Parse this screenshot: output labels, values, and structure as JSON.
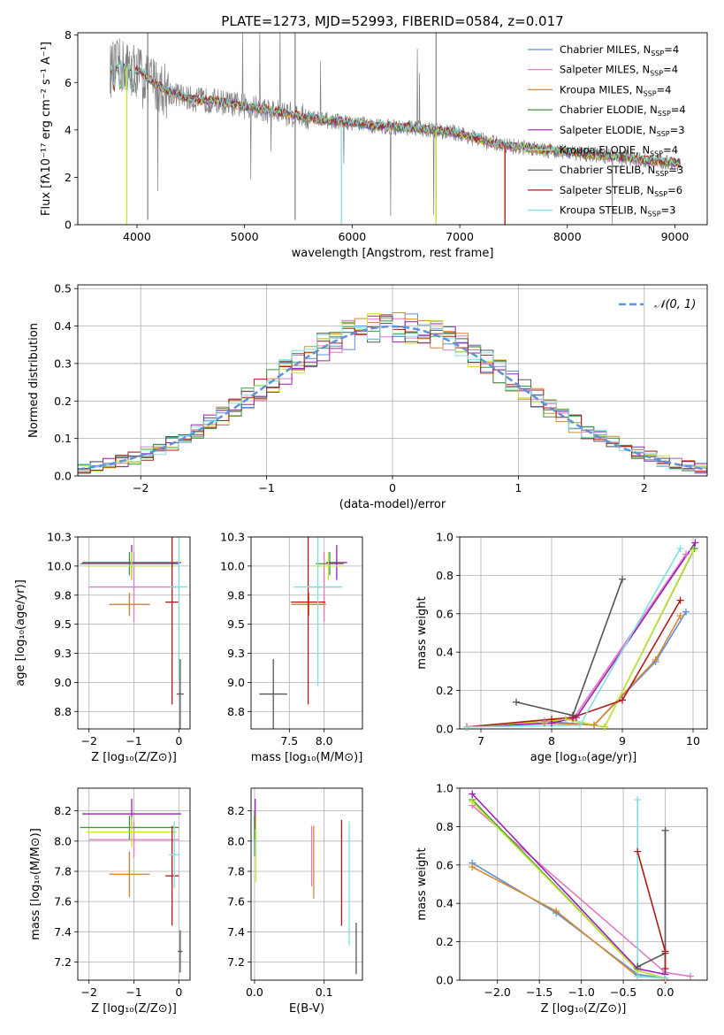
{
  "title": "PLATE=1273, MJD=52993, FIBERID=0584, z=0.017",
  "colors": {
    "chabrier_miles": "#5b8fd9",
    "salpeter_miles": "#e377c2",
    "kroupa_miles": "#d98a2e",
    "chabrier_elodie": "#3a9a3a",
    "salpeter_elodie": "#9b1fb5",
    "kroupa_elodie": "#c8e632",
    "chabrier_stelib": "#555555",
    "salpeter_stelib": "#b21a1a",
    "kroupa_stelib": "#7fe0e0",
    "gaussian": "#6092d6",
    "data": "#808080"
  },
  "legend": [
    {
      "model": "Chabrier MILES, N",
      "nssp": "=4",
      "color_key": "chabrier_miles"
    },
    {
      "model": "Salpeter MILES, N",
      "nssp": "=4",
      "color_key": "salpeter_miles"
    },
    {
      "model": "Kroupa MILES, N",
      "nssp": "=4",
      "color_key": "kroupa_miles"
    },
    {
      "model": "Chabrier ELODIE, N",
      "nssp": "=4",
      "color_key": "chabrier_elodie"
    },
    {
      "model": "Salpeter ELODIE, N",
      "nssp": "=3",
      "color_key": "salpeter_elodie"
    },
    {
      "model": "Kroupa ELODIE, N",
      "nssp": "=4",
      "color_key": "kroupa_elodie"
    },
    {
      "model": "Chabrier STELIB, N",
      "nssp": "=3",
      "color_key": "chabrier_stelib"
    },
    {
      "model": "Salpeter STELIB, N",
      "nssp": "=6",
      "color_key": "salpeter_stelib"
    },
    {
      "model": "Kroupa STELIB, N",
      "nssp": "=3",
      "color_key": "kroupa_stelib"
    }
  ],
  "chart_data": [
    {
      "id": "spectrum",
      "type": "line",
      "title": "PLATE=1273, MJD=52993, FIBERID=0584, z=0.017",
      "xlabel": "wavelength [Angstrom, rest frame]",
      "ylabel": "Flux [fλ10⁻¹⁷ erg cm⁻² s⁻¹ A⁻¹]",
      "xlim": [
        3450,
        9300
      ],
      "ylim": [
        0,
        8.1
      ],
      "xticks": [
        4000,
        5000,
        6000,
        7000,
        8000,
        9000
      ],
      "yticks": [
        0,
        2,
        4,
        6,
        8
      ],
      "continuum": {
        "x": [
          3750,
          3850,
          3950,
          4050,
          4150,
          4300,
          4500,
          4750,
          5000,
          5250,
          5500,
          5750,
          6000,
          6250,
          6500,
          6750,
          7000,
          7250,
          7500,
          7750,
          8000,
          8250,
          8500,
          8750,
          9050
        ],
        "y": [
          6.5,
          6.7,
          6.6,
          6.4,
          6.0,
          5.6,
          5.3,
          5.2,
          5.0,
          4.8,
          4.6,
          4.4,
          4.3,
          4.15,
          4.1,
          4.0,
          3.85,
          3.5,
          3.3,
          3.2,
          3.05,
          2.95,
          2.85,
          2.7,
          2.6
        ]
      },
      "model_dropouts": [
        {
          "color_key": "kroupa_elodie",
          "x": 3905
        },
        {
          "color_key": "kroupa_stelib",
          "x": 5900
        },
        {
          "color_key": "kroupa_elodie",
          "x": 6780
        },
        {
          "color_key": "kroupa_miles",
          "x": 7420
        },
        {
          "color_key": "salpeter_stelib",
          "x": 7420
        }
      ],
      "legend_position": "upper-right"
    },
    {
      "id": "residuals",
      "type": "step",
      "xlabel": "(data-model)/error",
      "ylabel": "Normed distribution",
      "xlim": [
        -2.5,
        2.5
      ],
      "ylim": [
        0,
        0.51
      ],
      "xticks": [
        -2,
        -1,
        0,
        1,
        2
      ],
      "yticks": [
        0.0,
        0.1,
        0.2,
        0.3,
        0.4,
        0.5
      ],
      "gaussian_label": "𝒩(0, 1)",
      "bin_width": 0.1,
      "legend_position": "upper-right"
    },
    {
      "id": "age_vs_Z",
      "type": "errorbar",
      "xlabel": "Z [log₁₀(Z/Z⊙)]",
      "ylabel": "age  [log₁₀(age/yr)]",
      "xlim": [
        -2.25,
        0.25
      ],
      "ylim": [
        8.6,
        10.25
      ],
      "xticks": [
        -2,
        -1,
        0
      ],
      "yticks": [
        8.75,
        9.0,
        9.25,
        9.5,
        9.75,
        10.0,
        10.25
      ],
      "points": [
        {
          "c": "chabrier_miles",
          "x": -1.1,
          "xerr": 0.45,
          "y": 9.67,
          "yerr": 0.08
        },
        {
          "c": "salpeter_miles",
          "x": -1.0,
          "xerr": 1.0,
          "y": 9.82,
          "yerr": 0.3
        },
        {
          "c": "kroupa_miles",
          "x": -1.1,
          "xerr": 0.45,
          "y": 9.67,
          "yerr": 0.1
        },
        {
          "c": "chabrier_elodie",
          "x": -1.1,
          "xerr": 1.1,
          "y": 10.02,
          "yerr": 0.1
        },
        {
          "c": "salpeter_elodie",
          "x": -1.05,
          "xerr": 1.1,
          "y": 10.03,
          "yerr": 0.15
        },
        {
          "c": "kroupa_elodie",
          "x": -1.05,
          "xerr": 1.0,
          "y": 10.0,
          "yerr": 0.12
        },
        {
          "c": "chabrier_stelib",
          "x": 0.03,
          "xerr": 0.08,
          "y": 8.9,
          "yerr": 0.3
        },
        {
          "c": "salpeter_stelib",
          "x": -0.15,
          "xerr": 0.15,
          "y": 9.69,
          "yerr": 0.88
        },
        {
          "c": "kroupa_stelib",
          "x": 0.0,
          "xerr": 0.2,
          "y": 9.82,
          "yerr": 0.8
        }
      ]
    },
    {
      "id": "age_vs_mass",
      "type": "errorbar",
      "xlabel": "mass [log₁₀(M/M⊙)]",
      "ylabel": "",
      "xlim": [
        6.95,
        8.55
      ],
      "ylim": [
        8.6,
        10.25
      ],
      "xticks": [
        7.5,
        8.0
      ],
      "yticks": [
        8.75,
        9.0,
        9.25,
        9.5,
        9.75,
        10.0,
        10.25
      ],
      "points": [
        {
          "c": "chabrier_miles",
          "x": 7.78,
          "xerr": 0.25,
          "y": 9.67,
          "yerr": 0.08
        },
        {
          "c": "salpeter_miles",
          "x": 8.0,
          "xerr": 0.2,
          "y": 9.82,
          "yerr": 0.3
        },
        {
          "c": "kroupa_miles",
          "x": 7.78,
          "xerr": 0.25,
          "y": 9.67,
          "yerr": 0.1
        },
        {
          "c": "chabrier_elodie",
          "x": 8.08,
          "xerr": 0.2,
          "y": 10.02,
          "yerr": 0.1
        },
        {
          "c": "salpeter_elodie",
          "x": 8.18,
          "xerr": 0.15,
          "y": 10.03,
          "yerr": 0.15
        },
        {
          "c": "kroupa_elodie",
          "x": 8.06,
          "xerr": 0.2,
          "y": 10.0,
          "yerr": 0.12
        },
        {
          "c": "chabrier_stelib",
          "x": 7.27,
          "xerr": 0.2,
          "y": 8.9,
          "yerr": 0.3
        },
        {
          "c": "salpeter_stelib",
          "x": 7.77,
          "xerr": 0.25,
          "y": 9.69,
          "yerr": 0.88
        },
        {
          "c": "kroupa_stelib",
          "x": 7.91,
          "xerr": 0.35,
          "y": 9.82,
          "yerr": 0.85
        }
      ]
    },
    {
      "id": "massweight_vs_age",
      "type": "line",
      "xlabel": "age  [log₁₀(age/yr)]",
      "ylabel": "mass weight",
      "xlim": [
        6.7,
        10.2
      ],
      "ylim": [
        0,
        1
      ],
      "xticks": [
        7,
        8,
        9,
        10
      ],
      "yticks": [
        0.0,
        0.2,
        0.4,
        0.6,
        0.8,
        1.0
      ],
      "series": [
        {
          "c": "chabrier_miles",
          "x": [
            6.8,
            7.9,
            8.6,
            9.47,
            9.9
          ],
          "y": [
            0.01,
            0.04,
            0.02,
            0.35,
            0.61
          ]
        },
        {
          "c": "salpeter_miles",
          "x": [
            6.8,
            7.9,
            8.3,
            9.9
          ],
          "y": [
            0.01,
            0.04,
            0.05,
            0.91
          ]
        },
        {
          "c": "kroupa_miles",
          "x": [
            6.8,
            7.9,
            8.6,
            9.47,
            9.82
          ],
          "y": [
            0.01,
            0.03,
            0.02,
            0.36,
            0.59
          ]
        },
        {
          "c": "chabrier_elodie",
          "x": [
            6.8,
            8.2,
            8.75,
            10.02
          ],
          "y": [
            0.01,
            0.05,
            0.01,
            0.94
          ]
        },
        {
          "c": "salpeter_elodie",
          "x": [
            6.8,
            8.0,
            8.35,
            10.03
          ],
          "y": [
            0.01,
            0.03,
            0.06,
            0.97
          ]
        },
        {
          "c": "kroupa_elodie",
          "x": [
            6.8,
            8.2,
            8.75,
            10.0
          ],
          "y": [
            0.01,
            0.05,
            0.01,
            0.93
          ]
        },
        {
          "c": "chabrier_stelib",
          "x": [
            7.5,
            8.3,
            9.0
          ],
          "y": [
            0.14,
            0.07,
            0.78
          ]
        },
        {
          "c": "salpeter_stelib",
          "x": [
            6.8,
            8.0,
            8.3,
            9.0,
            9.82
          ],
          "y": [
            0.01,
            0.05,
            0.06,
            0.15,
            0.67
          ]
        },
        {
          "c": "kroupa_stelib",
          "x": [
            6.8,
            8.4,
            9.82
          ],
          "y": [
            0.01,
            0.02,
            0.94
          ]
        }
      ]
    },
    {
      "id": "mass_vs_Z",
      "type": "errorbar",
      "xlabel": "Z [log₁₀(Z/Z⊙)]",
      "ylabel": "mass [log₁₀(M/M⊙)]",
      "xlim": [
        -2.25,
        0.25
      ],
      "ylim": [
        7.08,
        8.35
      ],
      "xticks": [
        -2,
        -1,
        0
      ],
      "yticks": [
        7.2,
        7.4,
        7.6,
        7.8,
        8.0,
        8.2
      ],
      "points": [
        {
          "c": "chabrier_miles",
          "x": -1.1,
          "xerr": 0.45,
          "y": 7.78,
          "yerr": 0.15
        },
        {
          "c": "salpeter_miles",
          "x": -1.0,
          "xerr": 1.0,
          "y": 8.01,
          "yerr": 0.12
        },
        {
          "c": "kroupa_miles",
          "x": -1.1,
          "xerr": 0.45,
          "y": 7.78,
          "yerr": 0.15
        },
        {
          "c": "chabrier_elodie",
          "x": -1.1,
          "xerr": 1.1,
          "y": 8.09,
          "yerr": 0.08
        },
        {
          "c": "salpeter_elodie",
          "x": -1.05,
          "xerr": 1.1,
          "y": 8.18,
          "yerr": 0.1
        },
        {
          "c": "kroupa_elodie",
          "x": -1.05,
          "xerr": 1.0,
          "y": 8.06,
          "yerr": 0.1
        },
        {
          "c": "chabrier_stelib",
          "x": 0.03,
          "xerr": 0.05,
          "y": 7.27,
          "yerr": 0.14
        },
        {
          "c": "salpeter_stelib",
          "x": -0.15,
          "xerr": 0.15,
          "y": 7.77,
          "yerr": 0.33
        },
        {
          "c": "kroupa_stelib",
          "x": -0.1,
          "xerr": 0.12,
          "y": 7.91,
          "yerr": 0.22
        }
      ]
    },
    {
      "id": "mass_vs_ebv",
      "type": "errorbar",
      "xlabel": "E(B-V)",
      "ylabel": "",
      "xlim": [
        -0.005,
        0.155
      ],
      "ylim": [
        7.08,
        8.35
      ],
      "xticks": [
        0.0,
        0.1
      ],
      "yticks": [
        7.2,
        7.4,
        7.6,
        7.8,
        8.0,
        8.2
      ],
      "points": [
        {
          "c": "chabrier_miles",
          "x": 0.0,
          "xerr": 0.0,
          "y": 8.05,
          "yerr": 0.15
        },
        {
          "c": "salpeter_miles",
          "x": 0.082,
          "xerr": 0.0,
          "y": 7.9,
          "yerr": 0.2
        },
        {
          "c": "kroupa_miles",
          "x": 0.085,
          "xerr": 0.0,
          "y": 7.86,
          "yerr": 0.24
        },
        {
          "c": "chabrier_elodie",
          "x": 0.0,
          "xerr": 0.0,
          "y": 8.09,
          "yerr": 0.08
        },
        {
          "c": "salpeter_elodie",
          "x": 0.001,
          "xerr": 0.0,
          "y": 8.18,
          "yerr": 0.1
        },
        {
          "c": "kroupa_elodie",
          "x": 0.002,
          "xerr": 0.0,
          "y": 7.95,
          "yerr": 0.22
        },
        {
          "c": "chabrier_stelib",
          "x": 0.146,
          "xerr": 0.0,
          "y": 7.29,
          "yerr": 0.17
        },
        {
          "c": "salpeter_stelib",
          "x": 0.125,
          "xerr": 0.0,
          "y": 7.79,
          "yerr": 0.35
        },
        {
          "c": "kroupa_stelib",
          "x": 0.136,
          "xerr": 0.0,
          "y": 7.72,
          "yerr": 0.41
        }
      ]
    },
    {
      "id": "massweight_vs_Z",
      "type": "line",
      "xlabel": "Z [log₁₀(Z/Z⊙)]",
      "ylabel": "mass weight",
      "xlim": [
        -2.45,
        0.5
      ],
      "ylim": [
        0,
        1
      ],
      "xticks": [
        -2.0,
        -1.5,
        -1.0,
        -0.5,
        0.0
      ],
      "yticks": [
        0.0,
        0.2,
        0.4,
        0.6,
        0.8,
        1.0
      ],
      "series": [
        {
          "c": "chabrier_miles",
          "x": [
            -2.3,
            -1.3,
            -0.33,
            0.0
          ],
          "y": [
            0.61,
            0.35,
            0.03,
            0.01
          ]
        },
        {
          "c": "salpeter_miles",
          "x": [
            -2.3,
            0.0,
            0.3
          ],
          "y": [
            0.91,
            0.04,
            0.02
          ]
        },
        {
          "c": "kroupa_miles",
          "x": [
            -2.3,
            -1.3,
            -0.33,
            0.0
          ],
          "y": [
            0.59,
            0.36,
            0.02,
            0.01
          ]
        },
        {
          "c": "chabrier_elodie",
          "x": [
            -2.3,
            -0.33,
            0.0
          ],
          "y": [
            0.94,
            0.05,
            0.01
          ]
        },
        {
          "c": "salpeter_elodie",
          "x": [
            -2.3,
            -0.33,
            0.0
          ],
          "y": [
            0.97,
            0.06,
            0.03
          ]
        },
        {
          "c": "kroupa_elodie",
          "x": [
            -2.3,
            -0.33,
            0.0
          ],
          "y": [
            0.93,
            0.05,
            0.01
          ]
        },
        {
          "c": "chabrier_stelib",
          "x": [
            -0.33,
            0.0,
            0.0,
            0.0
          ],
          "y": [
            0.07,
            0.14,
            0.78,
            0.0
          ]
        },
        {
          "c": "salpeter_stelib",
          "x": [
            -0.33,
            0.0,
            0.0,
            0.0
          ],
          "y": [
            0.67,
            0.15,
            0.06,
            0.0
          ]
        },
        {
          "c": "kroupa_stelib",
          "x": [
            -0.33,
            -0.33,
            0.0
          ],
          "y": [
            0.94,
            0.02,
            0.01
          ]
        }
      ]
    }
  ]
}
